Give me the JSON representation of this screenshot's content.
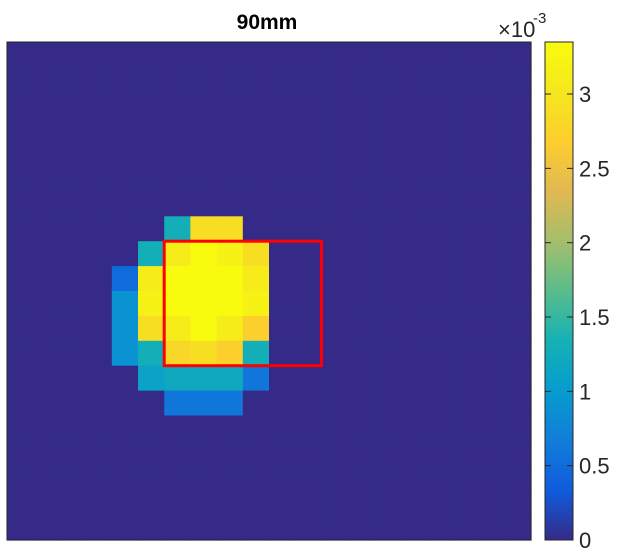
{
  "chart_data": {
    "type": "heatmap",
    "title": "90mm",
    "xlabel": "",
    "ylabel": "",
    "grid": false,
    "rows": 20,
    "cols": 20,
    "zlim": [
      0,
      0.00335
    ],
    "values": [
      [
        0,
        0,
        0,
        0,
        0,
        0,
        0,
        0,
        0,
        0,
        0,
        0,
        0,
        0,
        0,
        0,
        0,
        0,
        0,
        0
      ],
      [
        0,
        0,
        0,
        0,
        0,
        0,
        0,
        0,
        0,
        0,
        0,
        0,
        0,
        0,
        0,
        0,
        0,
        0,
        0,
        0
      ],
      [
        0,
        0,
        0,
        0,
        0,
        0,
        0,
        0,
        0,
        0,
        0,
        0,
        0,
        0,
        0,
        0,
        0,
        0,
        0,
        0
      ],
      [
        0,
        0,
        0,
        0,
        0,
        0,
        0,
        0,
        0,
        0,
        0,
        0,
        0,
        0,
        0,
        0,
        0,
        0,
        0,
        0
      ],
      [
        0,
        0,
        0,
        0,
        0,
        0,
        0,
        0,
        0,
        0,
        0,
        0,
        0,
        0,
        0,
        0,
        0,
        0,
        0,
        0
      ],
      [
        0,
        0,
        0,
        0,
        0,
        0,
        0,
        0,
        0,
        0,
        0,
        0,
        0,
        0,
        0,
        0,
        0,
        0,
        0,
        0
      ],
      [
        0,
        0,
        0,
        0,
        0,
        0,
        0,
        0,
        0,
        0,
        0,
        0,
        0,
        0,
        0,
        0,
        0,
        0,
        0,
        0
      ],
      [
        0,
        0,
        0,
        0,
        0,
        0,
        0.0013,
        0.0029,
        0.0029,
        0,
        0,
        0,
        0,
        0,
        0,
        0,
        0,
        0,
        0,
        0
      ],
      [
        0,
        0,
        0,
        0,
        0,
        0.0013,
        0.0031,
        0.00335,
        0.0032,
        0.0029,
        0,
        0,
        0,
        0,
        0,
        0,
        0,
        0,
        0,
        0
      ],
      [
        0,
        0,
        0,
        0,
        0.0005,
        0.0031,
        0.00335,
        0.00335,
        0.00335,
        0.0031,
        0,
        0,
        0,
        0,
        0,
        0,
        0,
        0,
        0,
        0
      ],
      [
        0,
        0,
        0,
        0,
        0.0009,
        0.0032,
        0.00335,
        0.00335,
        0.00335,
        0.0032,
        0,
        0,
        0,
        0,
        0,
        0,
        0,
        0,
        0,
        0
      ],
      [
        0,
        0,
        0,
        0,
        0.0009,
        0.0029,
        0.0031,
        0.00335,
        0.0031,
        0.0027,
        0,
        0,
        0,
        0,
        0,
        0,
        0,
        0,
        0,
        0
      ],
      [
        0,
        0,
        0,
        0,
        0.0009,
        0.0013,
        0.0028,
        0.0029,
        0.0027,
        0.0013,
        0,
        0,
        0,
        0,
        0,
        0,
        0,
        0,
        0,
        0
      ],
      [
        0,
        0,
        0,
        0,
        0,
        0.0011,
        0.0012,
        0.0012,
        0.0012,
        0.0006,
        0,
        0,
        0,
        0,
        0,
        0,
        0,
        0,
        0,
        0
      ],
      [
        0,
        0,
        0,
        0,
        0,
        0,
        0.0006,
        0.0006,
        0.0006,
        0,
        0,
        0,
        0,
        0,
        0,
        0,
        0,
        0,
        0,
        0
      ],
      [
        0,
        0,
        0,
        0,
        0,
        0,
        0,
        0,
        0,
        0,
        0,
        0,
        0,
        0,
        0,
        0,
        0,
        0,
        0,
        0
      ],
      [
        0,
        0,
        0,
        0,
        0,
        0,
        0,
        0,
        0,
        0,
        0,
        0,
        0,
        0,
        0,
        0,
        0,
        0,
        0,
        0
      ],
      [
        0,
        0,
        0,
        0,
        0,
        0,
        0,
        0,
        0,
        0,
        0,
        0,
        0,
        0,
        0,
        0,
        0,
        0,
        0,
        0
      ],
      [
        0,
        0,
        0,
        0,
        0,
        0,
        0,
        0,
        0,
        0,
        0,
        0,
        0,
        0,
        0,
        0,
        0,
        0,
        0,
        0
      ],
      [
        0,
        0,
        0,
        0,
        0,
        0,
        0,
        0,
        0,
        0,
        0,
        0,
        0,
        0,
        0,
        0,
        0,
        0,
        0,
        0
      ]
    ],
    "roi_rectangle": {
      "col_start": 6,
      "col_end": 12,
      "row_start": 8,
      "row_end": 13,
      "color": "#ff0000"
    },
    "colorbar": {
      "ticks": [
        0,
        0.0005,
        0.001,
        0.0015,
        0.002,
        0.0025,
        0.003
      ],
      "tick_labels": [
        "0",
        "0.5",
        "1",
        "1.5",
        "2",
        "2.5",
        "3"
      ],
      "exponent_base": "×10",
      "exponent_power": "-3",
      "colormap": "parula"
    }
  }
}
